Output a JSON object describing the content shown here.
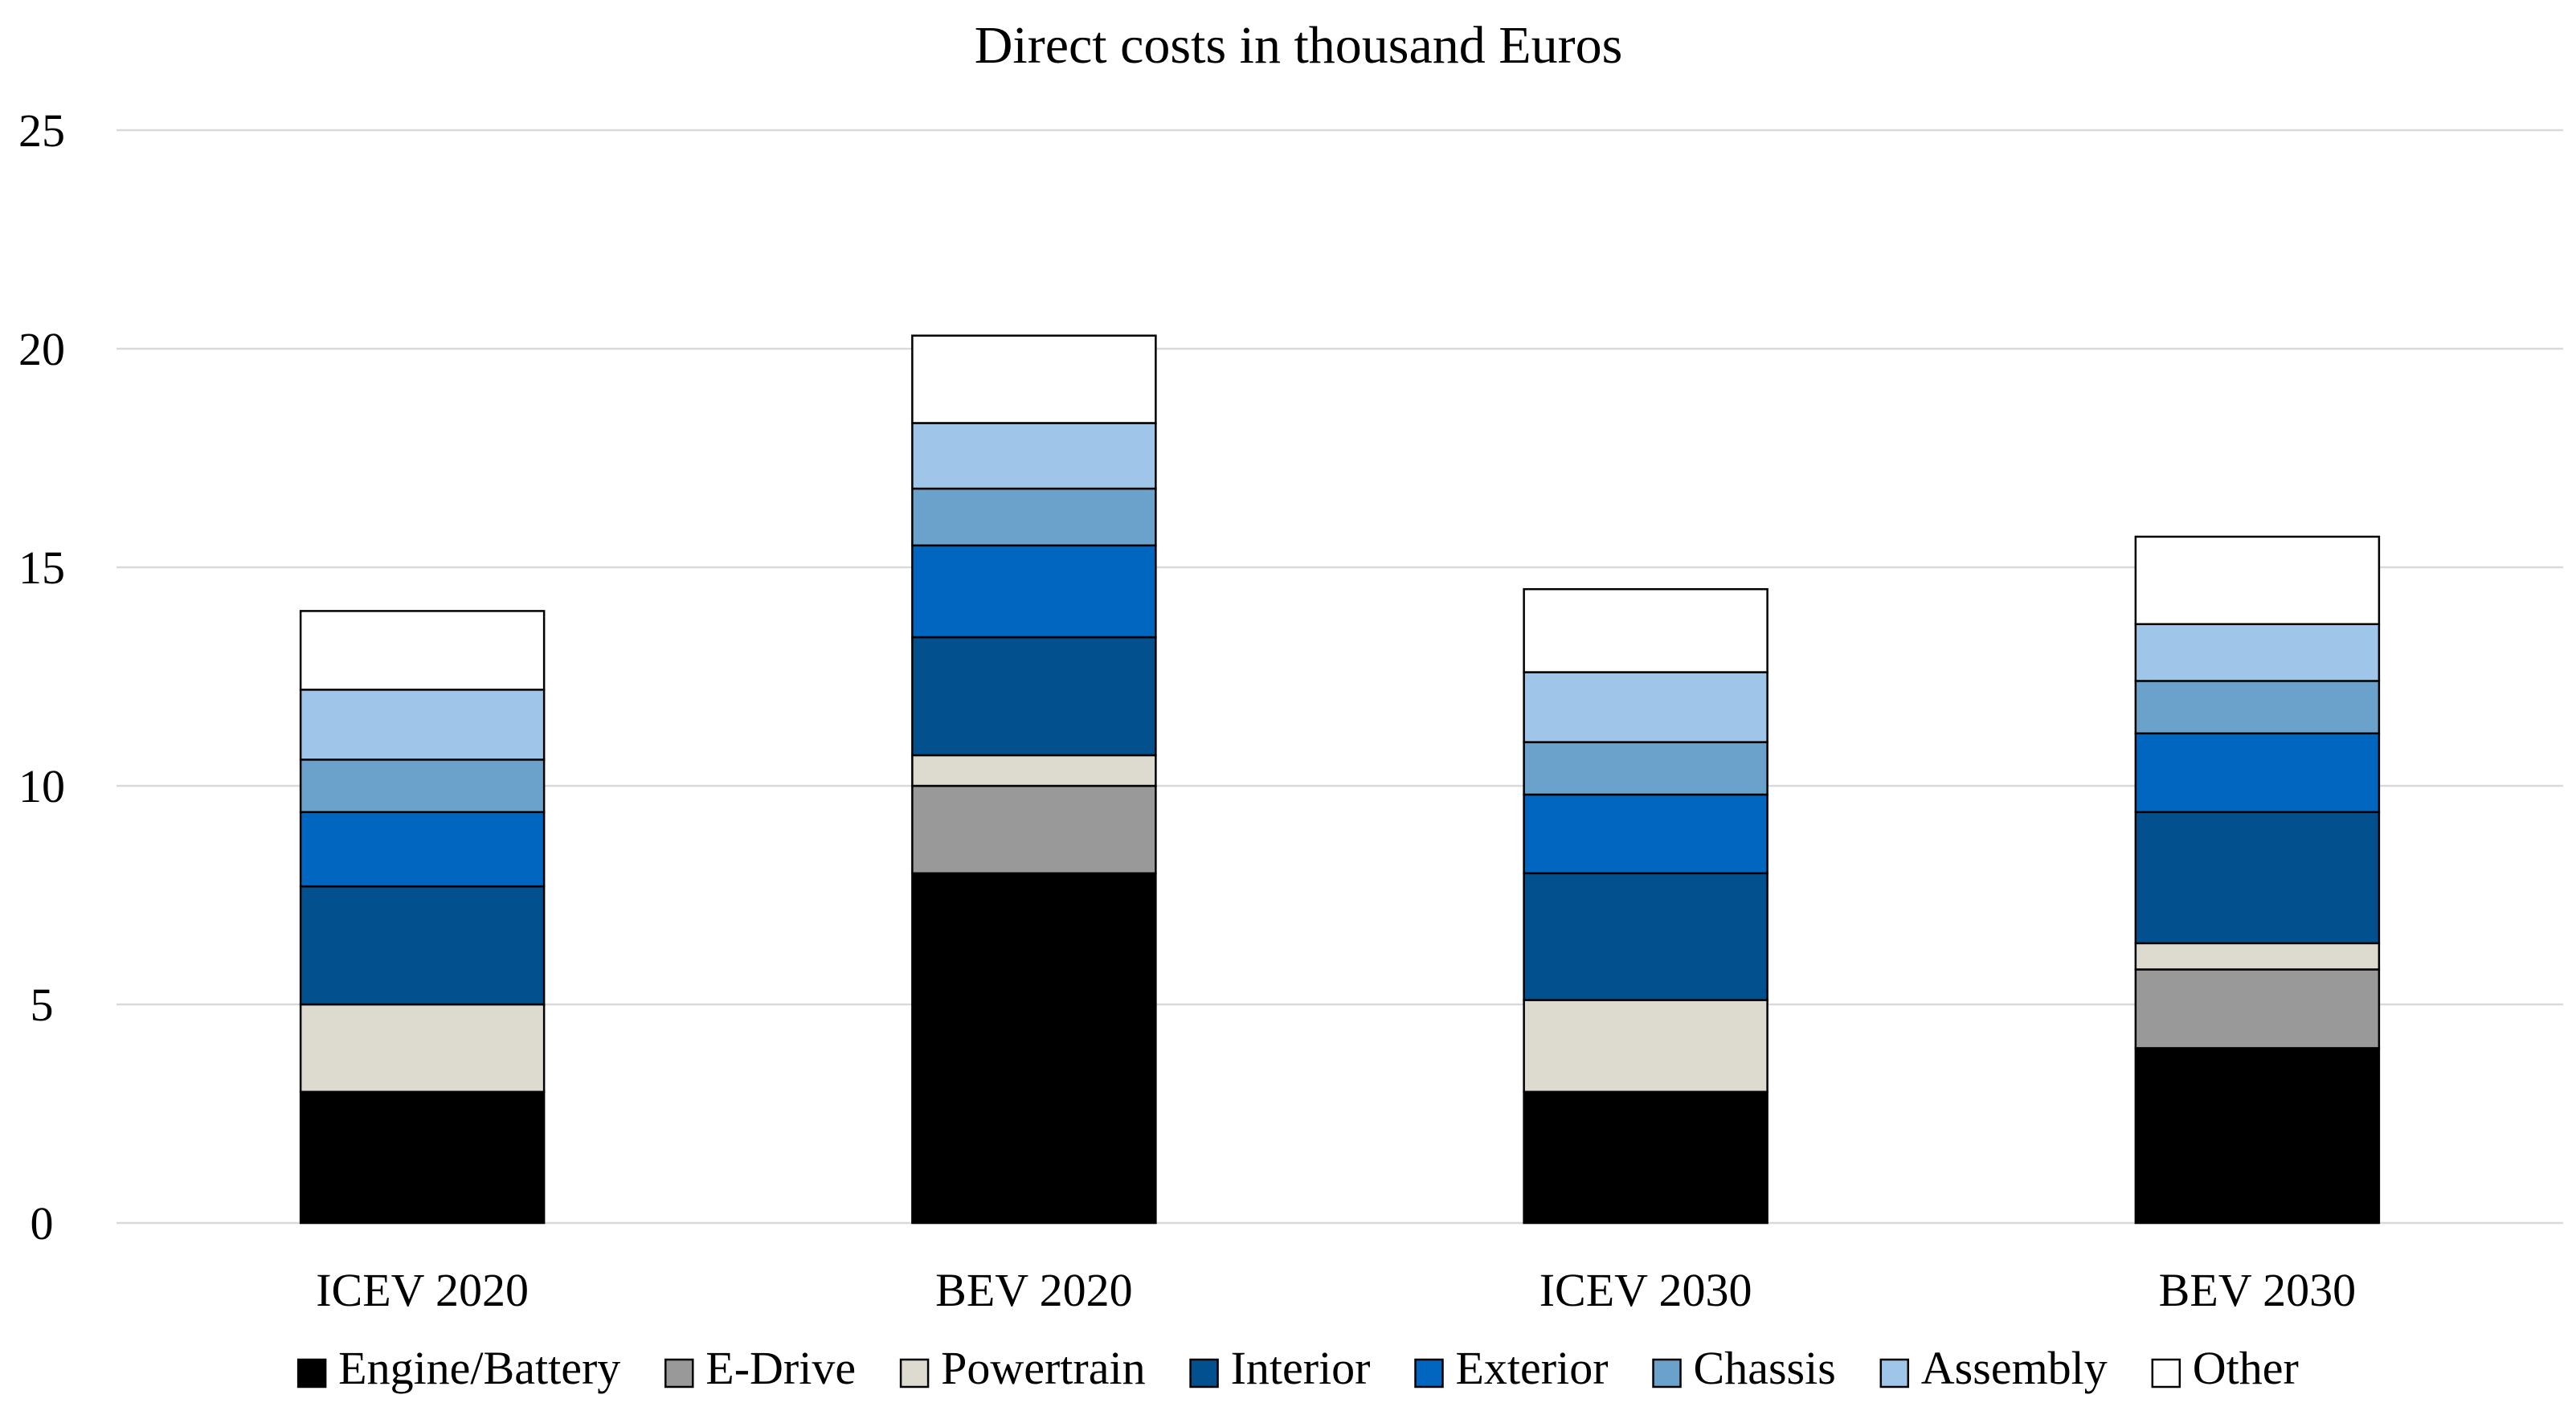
{
  "chart_data": {
    "type": "bar",
    "stacked": true,
    "title": "Direct costs in thousand Euros",
    "xlabel": "",
    "ylabel": "",
    "ylim": [
      0,
      25
    ],
    "yticks": [
      0,
      5,
      10,
      15,
      20,
      25
    ],
    "grid": true,
    "legend_position": "bottom",
    "categories": [
      "ICEV 2020",
      "BEV 2020",
      "ICEV 2030",
      "BEV 2030"
    ],
    "series": [
      {
        "name": "Engine/Battery",
        "color": "#000000",
        "values": [
          3.0,
          8.0,
          3.0,
          4.0
        ]
      },
      {
        "name": "E-Drive",
        "color": "#999999",
        "values": [
          0.0,
          2.0,
          0.0,
          1.8
        ]
      },
      {
        "name": "Powertrain",
        "color": "#dddbd0",
        "values": [
          2.0,
          0.7,
          2.1,
          0.6
        ]
      },
      {
        "name": "Interior",
        "color": "#03508f",
        "values": [
          2.7,
          2.7,
          2.9,
          3.0
        ]
      },
      {
        "name": "Exterior",
        "color": "#0066c0",
        "values": [
          1.7,
          2.1,
          1.8,
          1.8
        ]
      },
      {
        "name": "Chassis",
        "color": "#6aa2cb",
        "values": [
          1.2,
          1.3,
          1.2,
          1.2
        ]
      },
      {
        "name": "Assembly",
        "color": "#9fc6e8",
        "values": [
          1.6,
          1.5,
          1.6,
          1.3
        ]
      },
      {
        "name": "Other",
        "color": "#ffffff",
        "values": [
          1.8,
          2.0,
          1.9,
          2.0
        ]
      }
    ]
  }
}
